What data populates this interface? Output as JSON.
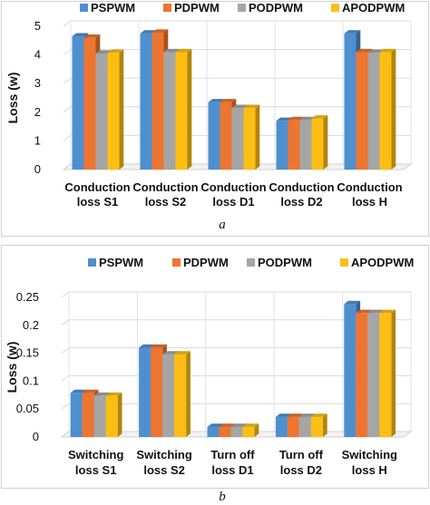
{
  "chart_data": [
    {
      "type": "bar",
      "panel_caption": "a",
      "ylabel": "Loss (w)",
      "ylim": [
        0,
        5
      ],
      "yticks": [
        "0",
        "1",
        "2",
        "3",
        "4",
        "5"
      ],
      "categories": [
        [
          "Conduction",
          "loss S1"
        ],
        [
          "Conduction",
          "loss S2"
        ],
        [
          "Conduction",
          "loss D1"
        ],
        [
          "Conduction",
          "loss D2"
        ],
        [
          "Conduction",
          "loss H"
        ]
      ],
      "series": [
        {
          "name": "PSPWM",
          "color": "#4e8fd0",
          "values": [
            4.65,
            4.75,
            2.35,
            1.7,
            4.75
          ]
        },
        {
          "name": "PDPWM",
          "color": "#ed7530",
          "values": [
            4.6,
            4.78,
            2.35,
            1.73,
            4.1
          ]
        },
        {
          "name": "PODPWM",
          "color": "#a5a5a5",
          "values": [
            4.05,
            4.1,
            2.15,
            1.73,
            4.08
          ]
        },
        {
          "name": "APODPWM",
          "color": "#fcbe14",
          "values": [
            4.08,
            4.1,
            2.15,
            1.78,
            4.1
          ]
        }
      ],
      "grid": true,
      "legend_position": "top"
    },
    {
      "type": "bar",
      "panel_caption": "b",
      "ylabel": "Loss (w)",
      "ylim": [
        0,
        0.25
      ],
      "yticks": [
        "0",
        "0.05",
        "0.1",
        "0.15",
        "0.2",
        "0.25"
      ],
      "categories": [
        [
          "Switching",
          "loss S1"
        ],
        [
          "Switching",
          "loss S2"
        ],
        [
          "Turn off",
          "loss D1"
        ],
        [
          "Turn off",
          "loss D2"
        ],
        [
          "Switching",
          "loss H"
        ]
      ],
      "series": [
        {
          "name": "PSPWM",
          "color": "#4e8fd0",
          "values": [
            0.079,
            0.16,
            0.018,
            0.036,
            0.238
          ]
        },
        {
          "name": "PDPWM",
          "color": "#ed7530",
          "values": [
            0.079,
            0.16,
            0.018,
            0.036,
            0.222
          ]
        },
        {
          "name": "PODPWM",
          "color": "#a5a5a5",
          "values": [
            0.074,
            0.148,
            0.018,
            0.036,
            0.222
          ]
        },
        {
          "name": "APODPWM",
          "color": "#fcbe14",
          "values": [
            0.074,
            0.148,
            0.018,
            0.036,
            0.222
          ]
        }
      ],
      "grid": true,
      "legend_position": "top"
    }
  ]
}
